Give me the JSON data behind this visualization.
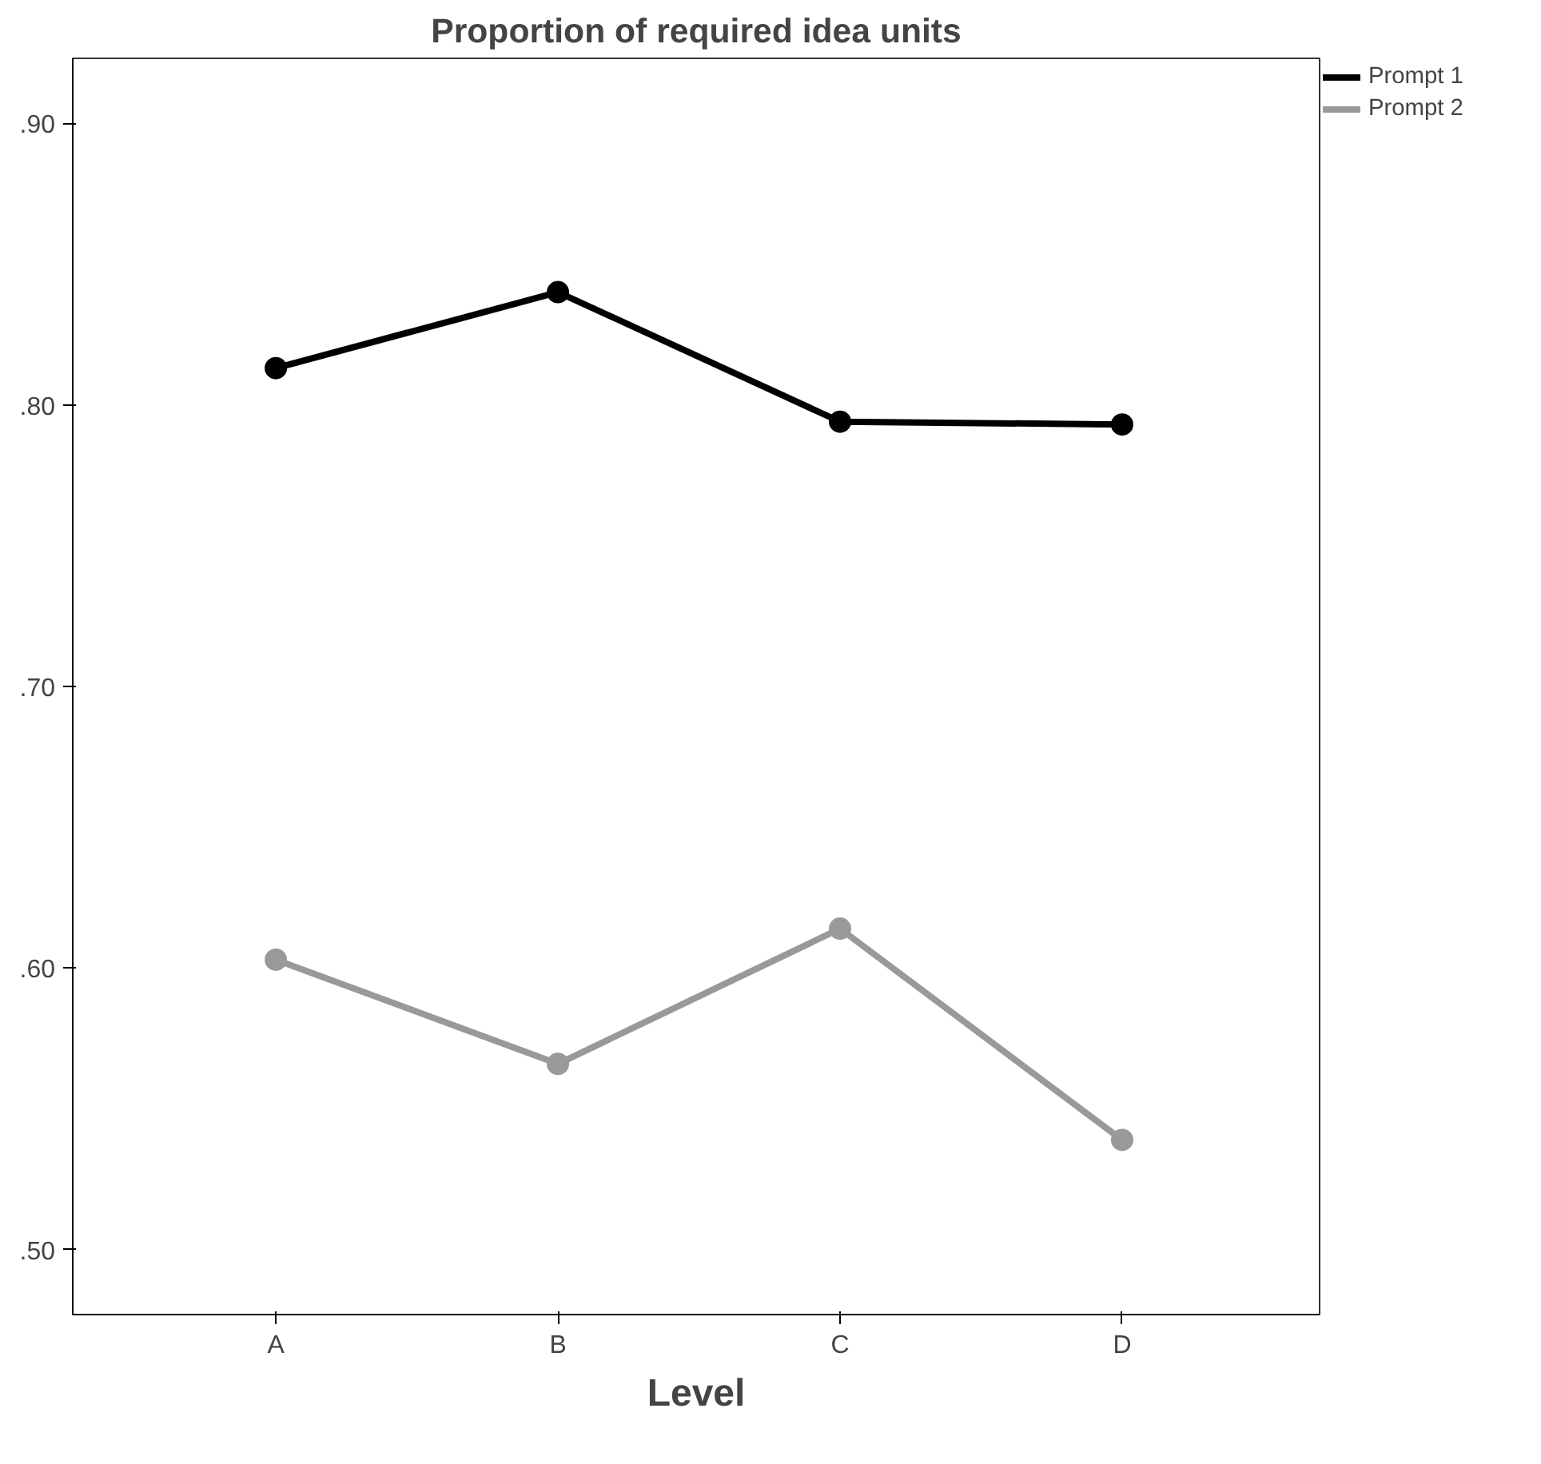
{
  "chart_data": {
    "type": "line",
    "title": "Proportion of required idea units",
    "xlabel": "Level",
    "categories": [
      "A",
      "B",
      "C",
      "D"
    ],
    "series": [
      {
        "name": "Prompt 1",
        "color": "#000000",
        "values": [
          0.813,
          0.84,
          0.794,
          0.793
        ]
      },
      {
        "name": "Prompt 2",
        "color": "#999999",
        "values": [
          0.603,
          0.566,
          0.614,
          0.539
        ]
      }
    ],
    "ylim": [
      0.477,
      0.923
    ],
    "yticks": [
      {
        "value": 0.5,
        "label": ".50"
      },
      {
        "value": 0.6,
        "label": ".60"
      },
      {
        "value": 0.7,
        "label": ".70"
      },
      {
        "value": 0.8,
        "label": ".80"
      },
      {
        "value": 0.9,
        "label": ".90"
      }
    ],
    "grid": false,
    "legend": "top right",
    "marker": "circle",
    "line_style": "solid"
  }
}
